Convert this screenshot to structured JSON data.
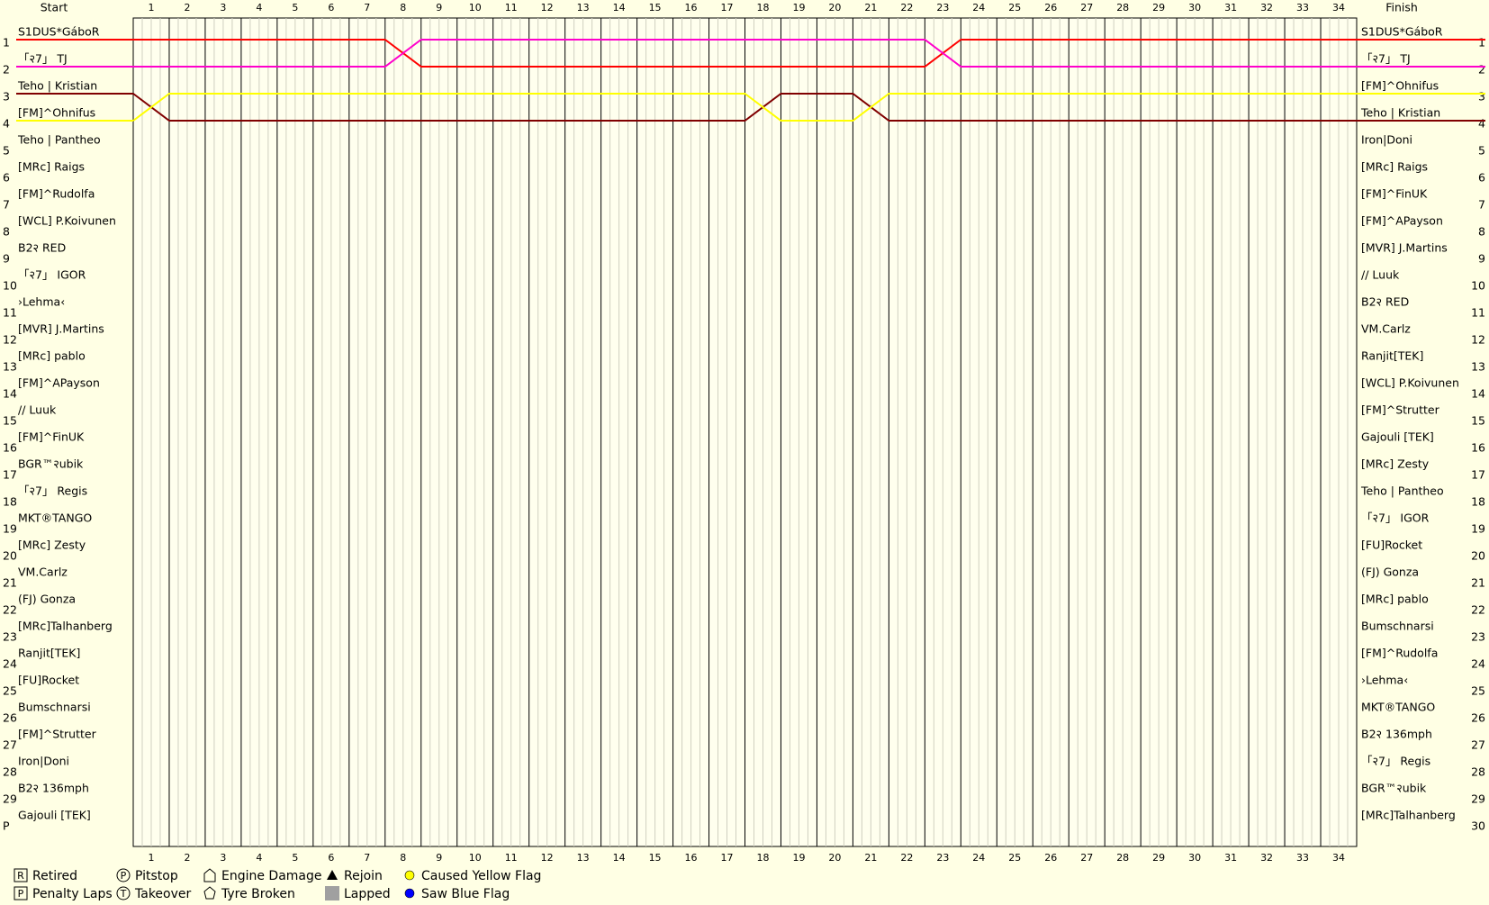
{
  "chart_data": {
    "type": "lapchart",
    "start_header": "Start",
    "finish_header": "Finish",
    "laps": [
      1,
      2,
      3,
      4,
      5,
      6,
      7,
      8,
      9,
      10,
      11,
      12,
      13,
      14,
      15,
      16,
      17,
      18,
      19,
      20,
      21,
      22,
      23,
      24,
      25,
      26,
      27,
      28,
      29,
      30,
      31,
      32,
      33,
      34
    ],
    "left_positions": [
      "1",
      "2",
      "3",
      "4",
      "5",
      "6",
      "7",
      "8",
      "9",
      "10",
      "11",
      "12",
      "13",
      "14",
      "15",
      "16",
      "17",
      "18",
      "19",
      "20",
      "21",
      "22",
      "23",
      "24",
      "25",
      "26",
      "27",
      "28",
      "29",
      "P"
    ],
    "right_positions": [
      1,
      2,
      3,
      4,
      5,
      6,
      7,
      8,
      9,
      10,
      11,
      12,
      13,
      14,
      15,
      16,
      17,
      18,
      19,
      20,
      21,
      22,
      23,
      24,
      25,
      26,
      27,
      28,
      29,
      30
    ],
    "start_order": [
      "S1DUS*GáboR",
      "「२7」 TJ",
      "Teho | Kristian",
      "[FM]^Ohnifus",
      "Teho | Pantheo",
      "[MRc] Raigs",
      "[FM]^Rudolfa",
      "[WCL] P.Koivunen",
      "B2२ RED",
      "「२7」 IGOR",
      "›Lehma‹",
      "[MVR] J.Martins",
      "[MRc] pablo",
      "[FM]^APayson",
      "// Luuk",
      "[FM]^FinUK",
      "BGR™२ubik",
      "「२7」 Regis",
      "MKT®TANGO",
      "[MRc] Zesty",
      "VM.Carlz",
      "(FJ) Gonza",
      "[MRc]Talhanberg",
      "Ranjit[TEK]",
      "[FU]Rocket",
      "Bumschnarsi",
      "[FM]^Strutter",
      "Iron|Doni",
      "B2२ 136mph",
      "Gajouli [TEK]"
    ],
    "finish_order": [
      "S1DUS*GáboR",
      "「२7」 TJ",
      "[FM]^Ohnifus",
      "Teho | Kristian",
      "Iron|Doni",
      "[MRc] Raigs",
      "[FM]^FinUK",
      "[FM]^APayson",
      "[MVR] J.Martins",
      "// Luuk",
      "B2२ RED",
      "VM.Carlz",
      "Ranjit[TEK]",
      "[WCL] P.Koivunen",
      "[FM]^Strutter",
      "Gajouli [TEK]",
      "[MRc] Zesty",
      "Teho | Pantheo",
      "「२7」 IGOR",
      "[FU]Rocket",
      "(FJ) Gonza",
      "[MRc] pablo",
      "Bumschnarsi",
      "[FM]^Rudolfa",
      "›Lehma‹",
      "MKT®TANGO",
      "B2२ 136mph",
      "「२7」 Regis",
      "BGR™२ubik",
      "[MRc]Talhanberg"
    ],
    "x": [
      0,
      1,
      2,
      3,
      4,
      5,
      6,
      7,
      8,
      9,
      10,
      11,
      12,
      13,
      14,
      15,
      16,
      17,
      18,
      19,
      20,
      21,
      22,
      23,
      24,
      25,
      26,
      27,
      28,
      29,
      30,
      31,
      32,
      33,
      34
    ],
    "series": [
      {
        "name": "S1DUS*GáboR",
        "color": "#ff0000",
        "values": [
          1,
          1,
          1,
          1,
          1,
          1,
          1,
          1,
          2,
          2,
          2,
          2,
          2,
          2,
          2,
          2,
          2,
          2,
          2,
          2,
          2,
          2,
          2,
          1,
          1,
          1,
          1,
          1,
          1,
          1,
          1,
          1,
          1,
          1,
          1
        ]
      },
      {
        "name": "「२7」 TJ",
        "color": "#ff00cc",
        "values": [
          2,
          2,
          2,
          2,
          2,
          2,
          2,
          2,
          1,
          1,
          1,
          1,
          1,
          1,
          1,
          1,
          1,
          1,
          1,
          1,
          1,
          1,
          1,
          2,
          2,
          2,
          2,
          2,
          2,
          2,
          2,
          2,
          2,
          2,
          2
        ]
      },
      {
        "name": "Teho | Kristian",
        "color": "#800000",
        "values": [
          3,
          4,
          4,
          4,
          4,
          4,
          4,
          4,
          4,
          4,
          4,
          4,
          4,
          4,
          4,
          4,
          4,
          4,
          3,
          3,
          3,
          4,
          4,
          4,
          4,
          4,
          4,
          4,
          4,
          4,
          4,
          4,
          4,
          4,
          4
        ]
      },
      {
        "name": "[FM]^Ohnifus",
        "color": "#ffff00",
        "values": [
          4,
          3,
          3,
          3,
          3,
          3,
          3,
          3,
          3,
          3,
          3,
          3,
          3,
          3,
          3,
          3,
          3,
          3,
          4,
          4,
          4,
          3,
          3,
          3,
          3,
          3,
          3,
          3,
          3,
          3,
          3,
          3,
          3,
          3,
          3
        ]
      }
    ],
    "legend": [
      {
        "symbol": "R",
        "shape": "box",
        "label": "Retired"
      },
      {
        "symbol": "P",
        "shape": "box",
        "label": "Penalty Laps"
      },
      {
        "symbol": "P",
        "shape": "circle",
        "label": "Pitstop"
      },
      {
        "symbol": "T",
        "shape": "circle",
        "label": "Takeover"
      },
      {
        "shape": "house",
        "label": "Engine Damage"
      },
      {
        "shape": "star",
        "label": "Tyre Broken"
      },
      {
        "shape": "triangle",
        "label": "Rejoin"
      },
      {
        "shape": "square",
        "color": "#a0a0a0",
        "label": "Lapped"
      },
      {
        "shape": "dot",
        "color": "#ffff00",
        "label": "Caused Yellow Flag"
      },
      {
        "shape": "dot",
        "color": "#0000ff",
        "label": "Saw Blue Flag"
      }
    ]
  }
}
